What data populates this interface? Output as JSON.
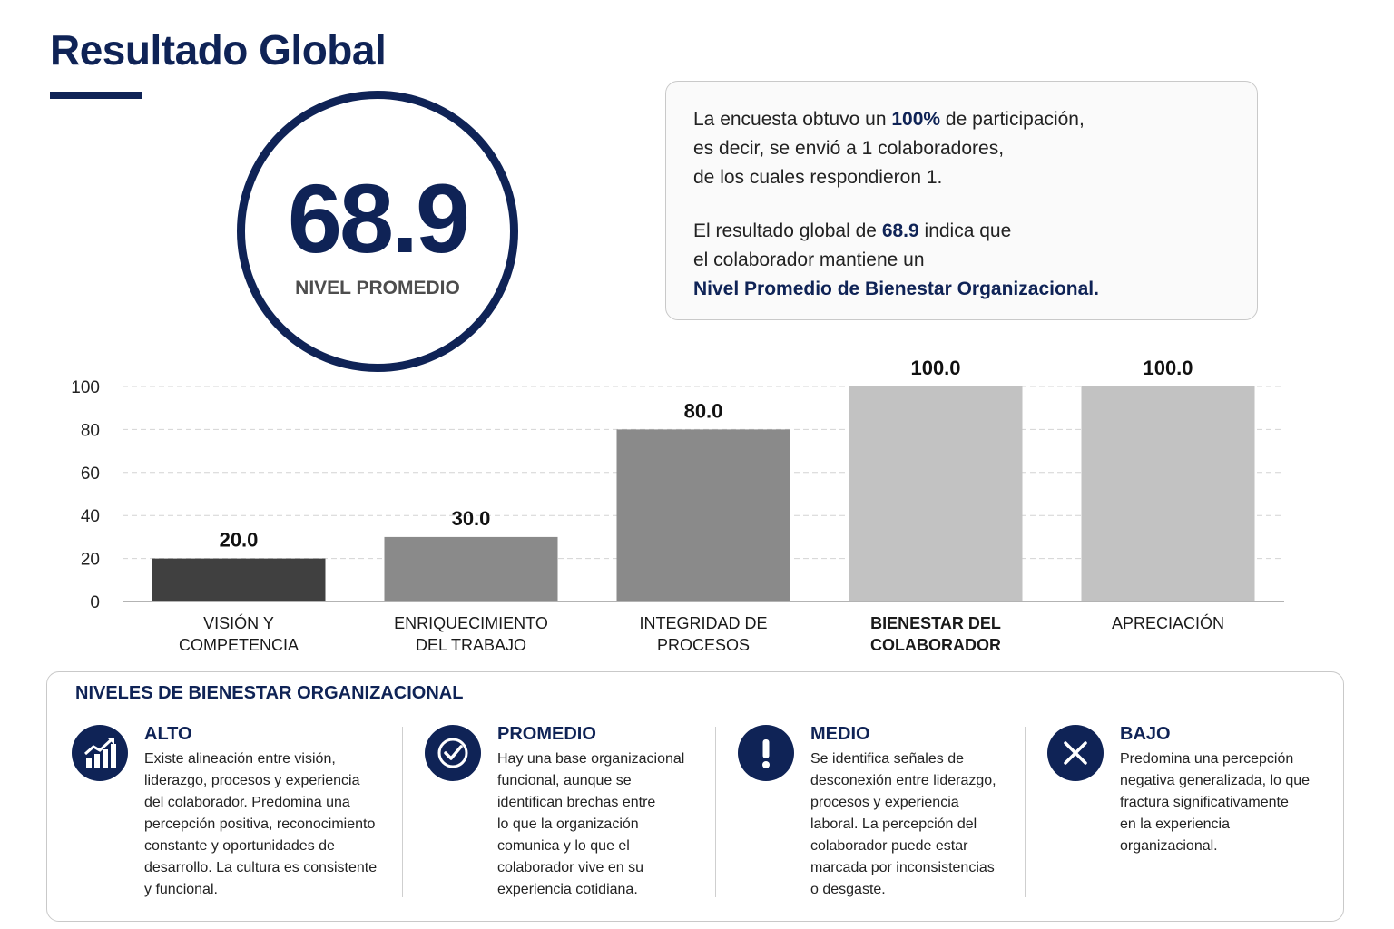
{
  "page": {
    "title": "Resultado Global"
  },
  "score": {
    "value": "68.9",
    "label": "NIVEL PROMEDIO"
  },
  "info": {
    "line1_pre": "La encuesta obtuvo un ",
    "line1_highlight": "100%",
    "line1_post": " de participación,",
    "line2": "es decir, se envió a 1 colaboradores,",
    "line3": "de los cuales respondieron 1.",
    "line4_pre": "El resultado global de ",
    "line4_highlight": "68.9",
    "line4_post": " indica que",
    "line5": "el colaborador mantiene un",
    "line6": "Nivel Promedio de Bienestar Organizacional."
  },
  "chart_data": {
    "type": "bar",
    "categories": [
      [
        "VISIÓN Y",
        "COMPETENCIA"
      ],
      [
        "ENRIQUECIMIENTO",
        "DEL TRABAJO"
      ],
      [
        "INTEGRIDAD DE",
        "PROCESOS"
      ],
      [
        "BIENESTAR DEL",
        "COLABORADOR"
      ],
      [
        "APRECIACIÓN"
      ]
    ],
    "values": [
      20.0,
      30.0,
      80.0,
      100.0,
      100.0
    ],
    "value_labels": [
      "20.0",
      "30.0",
      "80.0",
      "100.0",
      "100.0"
    ],
    "bar_colors": [
      "#404040",
      "#8a8a8a",
      "#8a8a8a",
      "#c2c2c2",
      "#c2c2c2"
    ],
    "bold_categories": [
      3
    ],
    "ylim": [
      0,
      100
    ],
    "yticks": [
      0,
      20,
      40,
      60,
      80,
      100
    ],
    "grid": true,
    "title": "",
    "xlabel": "",
    "ylabel": ""
  },
  "levels": {
    "title": "NIVELES DE BIENESTAR ORGANIZACIONAL",
    "accent": "#0f2356",
    "items": [
      {
        "icon": "chart-growth-icon",
        "name": "ALTO",
        "lines": [
          "Existe alineación entre visión,",
          "liderazgo, procesos y experiencia",
          "del colaborador. Predomina una",
          "percepción positiva, reconocimiento",
          "constante y oportunidades de",
          "desarrollo. La cultura es consistente",
          "y funcional."
        ]
      },
      {
        "icon": "check-circle-icon",
        "name": "PROMEDIO",
        "lines": [
          "Hay una base organizacional",
          "funcional, aunque se",
          "identifican brechas entre",
          "lo que la organización",
          "comunica y lo que el",
          "colaborador vive en su",
          "experiencia cotidiana."
        ]
      },
      {
        "icon": "exclamation-icon",
        "name": "MEDIO",
        "lines": [
          "Se identifica señales de",
          "desconexión entre liderazgo,",
          "procesos y experiencia",
          "laboral. La percepción del",
          "colaborador puede estar",
          "marcada por inconsistencias",
          "o desgaste."
        ]
      },
      {
        "icon": "x-mark-icon",
        "name": "BAJO",
        "lines": [
          "Predomina una percepción",
          "negativa generalizada, lo que",
          "fractura significativamente",
          "en la experiencia",
          "organizacional."
        ]
      }
    ]
  }
}
